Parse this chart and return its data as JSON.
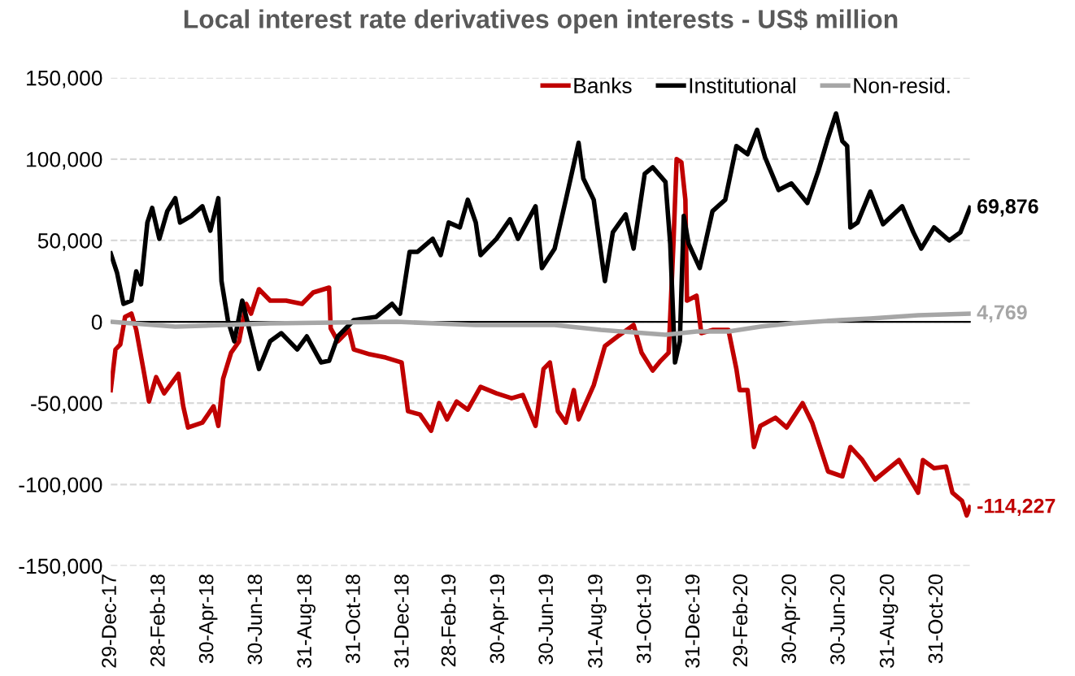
{
  "chart_data": {
    "type": "line",
    "title": "Local interest rate derivatives open interests - US$ million",
    "xlim": [
      "2017-12-29",
      "2020-12-12"
    ],
    "xticks": [
      {
        "value": "2017-12-29",
        "label": "29-Dec-17"
      },
      {
        "value": "2018-02-28",
        "label": "28-Feb-18"
      },
      {
        "value": "2018-04-30",
        "label": "30-Apr-18"
      },
      {
        "value": "2018-06-30",
        "label": "30-Jun-18"
      },
      {
        "value": "2018-08-31",
        "label": "31-Aug-18"
      },
      {
        "value": "2018-10-31",
        "label": "31-Oct-18"
      },
      {
        "value": "2018-12-31",
        "label": "31-Dec-18"
      },
      {
        "value": "2019-02-28",
        "label": "28-Feb-19"
      },
      {
        "value": "2019-04-30",
        "label": "30-Apr-19"
      },
      {
        "value": "2019-06-30",
        "label": "30-Jun-19"
      },
      {
        "value": "2019-08-31",
        "label": "31-Aug-19"
      },
      {
        "value": "2019-10-31",
        "label": "31-Oct-19"
      },
      {
        "value": "2019-12-31",
        "label": "31-Dec-19"
      },
      {
        "value": "2020-02-29",
        "label": "29-Feb-20"
      },
      {
        "value": "2020-04-30",
        "label": "30-Apr-20"
      },
      {
        "value": "2020-06-30",
        "label": "30-Jun-20"
      },
      {
        "value": "2020-08-31",
        "label": "31-Aug-20"
      },
      {
        "value": "2020-10-31",
        "label": "31-Oct-20"
      }
    ],
    "ylim": [
      -150000,
      150000
    ],
    "yticks": [
      {
        "value": -150000,
        "label": "-150,000"
      },
      {
        "value": -100000,
        "label": "-100,000"
      },
      {
        "value": -50000,
        "label": "-50,000"
      },
      0,
      {
        "value": 50000,
        "label": "50,000"
      },
      {
        "value": 100000,
        "label": "100,000"
      },
      {
        "value": 150000,
        "label": "150,000"
      }
    ],
    "grid": "y",
    "legend": "top right",
    "marker": "none",
    "line_style": "solid",
    "ref_lines": [
      {
        "axis": "y",
        "value": 0,
        "color": "#000000"
      }
    ],
    "annotations": [
      {
        "text": "-114,227",
        "x": "2020-12-11",
        "y": -114227
      },
      {
        "text": "69,876",
        "x": "2020-12-11",
        "y": 69876
      },
      {
        "text": "4,769",
        "x": "2020-12-11",
        "y": 4769
      }
    ],
    "series": [
      {
        "name": "Banks",
        "color": "#c00000",
        "x": [
          "2017-12-29",
          "2018-01-04",
          "2018-01-10",
          "2018-01-16",
          "2018-01-24",
          "2018-01-30",
          "2018-02-09",
          "2018-02-15",
          "2018-02-24",
          "2018-03-06",
          "2018-03-24",
          "2018-03-30",
          "2018-04-05",
          "2018-04-23",
          "2018-05-07",
          "2018-05-13",
          "2018-05-19",
          "2018-05-29",
          "2018-06-08",
          "2018-06-17",
          "2018-06-23",
          "2018-07-03",
          "2018-07-17",
          "2018-08-06",
          "2018-08-26",
          "2018-09-09",
          "2018-09-29",
          "2018-10-01",
          "2018-10-10",
          "2018-10-24",
          "2018-10-30",
          "2018-11-19",
          "2018-12-09",
          "2018-12-29",
          "2019-01-06",
          "2019-01-21",
          "2019-02-04",
          "2019-02-14",
          "2019-02-24",
          "2019-03-08",
          "2019-03-22",
          "2019-04-07",
          "2019-04-27",
          "2019-05-16",
          "2019-05-30",
          "2019-06-15",
          "2019-06-25",
          "2019-07-03",
          "2019-07-13",
          "2019-07-23",
          "2019-08-02",
          "2019-08-08",
          "2019-08-27",
          "2019-09-10",
          "2019-09-26",
          "2019-10-16",
          "2019-10-26",
          "2019-11-09",
          "2019-11-19",
          "2019-11-29",
          "2019-12-05",
          "2019-12-09",
          "2019-12-15",
          "2019-12-20",
          "2019-12-22",
          "2020-01-03",
          "2020-01-09",
          "2020-01-23",
          "2020-02-12",
          "2020-02-22",
          "2020-02-26",
          "2020-03-07",
          "2020-03-15",
          "2020-03-23",
          "2020-04-11",
          "2020-04-25",
          "2020-05-15",
          "2020-05-27",
          "2020-06-16",
          "2020-07-04",
          "2020-07-14",
          "2020-07-29",
          "2020-08-14",
          "2020-09-03",
          "2020-09-13",
          "2020-10-01",
          "2020-10-07",
          "2020-10-13",
          "2020-10-27",
          "2020-11-11",
          "2020-11-19",
          "2020-12-01",
          "2020-12-07",
          "2020-12-11"
        ],
        "values": [
          -42000,
          -17000,
          -14000,
          3000,
          5000,
          -5000,
          -32000,
          -49000,
          -34000,
          -44000,
          -32000,
          -52000,
          -65000,
          -62000,
          -52000,
          -64000,
          -35000,
          -19000,
          -12000,
          11000,
          5000,
          20000,
          13000,
          13000,
          11000,
          18000,
          21000,
          -4000,
          -12000,
          -5000,
          -17000,
          -20000,
          -22000,
          -25000,
          -55000,
          -57000,
          -67000,
          -50000,
          -60000,
          -49000,
          -54000,
          -40000,
          -44000,
          -47000,
          -45000,
          -64000,
          -29000,
          -25000,
          -55000,
          -62000,
          -42000,
          -60000,
          -39000,
          -15000,
          -9000,
          -2000,
          -19000,
          -30000,
          -24000,
          -19000,
          48000,
          100000,
          98000,
          75000,
          13000,
          16000,
          -7000,
          -5000,
          -5000,
          -29000,
          -42000,
          -42000,
          -77000,
          -64000,
          -59000,
          -65000,
          -50000,
          -62000,
          -92000,
          -95000,
          -77000,
          -85000,
          -97000,
          -89000,
          -85000,
          -100000,
          -105000,
          -85000,
          -90000,
          -89000,
          -105000,
          -110000,
          -119000,
          -114000
        ]
      },
      {
        "name": "Institutional",
        "color": "#000000",
        "x": [
          "2017-12-29",
          "2018-01-06",
          "2018-01-14",
          "2018-01-24",
          "2018-01-30",
          "2018-02-05",
          "2018-02-13",
          "2018-02-19",
          "2018-02-28",
          "2018-03-10",
          "2018-03-20",
          "2018-03-26",
          "2018-04-09",
          "2018-04-23",
          "2018-05-03",
          "2018-05-13",
          "2018-05-17",
          "2018-05-25",
          "2018-06-02",
          "2018-06-12",
          "2018-06-21",
          "2018-07-03",
          "2018-07-17",
          "2018-07-31",
          "2018-08-20",
          "2018-09-01",
          "2018-09-19",
          "2018-09-29",
          "2018-10-10",
          "2018-10-30",
          "2018-11-27",
          "2018-12-17",
          "2018-12-27",
          "2019-01-08",
          "2019-01-18",
          "2019-02-06",
          "2019-02-16",
          "2019-02-26",
          "2019-03-12",
          "2019-03-22",
          "2019-04-01",
          "2019-04-07",
          "2019-04-27",
          "2019-05-14",
          "2019-05-24",
          "2019-06-15",
          "2019-06-23",
          "2019-07-09",
          "2019-07-23",
          "2019-08-08",
          "2019-08-14",
          "2019-08-27",
          "2019-09-10",
          "2019-09-20",
          "2019-10-06",
          "2019-10-16",
          "2019-10-30",
          "2019-11-09",
          "2019-11-25",
          "2019-12-01",
          "2019-12-07",
          "2019-12-13",
          "2019-12-18",
          "2019-12-24",
          "2020-01-07",
          "2020-01-23",
          "2020-02-08",
          "2020-02-22",
          "2020-03-07",
          "2020-03-19",
          "2020-03-29",
          "2020-04-15",
          "2020-05-01",
          "2020-05-21",
          "2020-06-04",
          "2020-06-16",
          "2020-06-26",
          "2020-07-04",
          "2020-07-10",
          "2020-07-14",
          "2020-07-23",
          "2020-08-08",
          "2020-08-24",
          "2020-09-17",
          "2020-10-01",
          "2020-10-11",
          "2020-10-27",
          "2020-11-15",
          "2020-11-29",
          "2020-12-11"
        ],
        "values": [
          42000,
          30000,
          11000,
          13000,
          31000,
          23000,
          61000,
          70000,
          51000,
          68000,
          76000,
          61000,
          65000,
          71000,
          56000,
          76000,
          25000,
          1000,
          -12000,
          13000,
          -5000,
          -29000,
          -12000,
          -7000,
          -17000,
          -9000,
          -25000,
          -24000,
          -9000,
          1000,
          3000,
          11000,
          5000,
          43000,
          43000,
          51000,
          41000,
          61000,
          58000,
          75000,
          61000,
          41000,
          51000,
          63000,
          51000,
          71000,
          33000,
          45000,
          75000,
          110000,
          88000,
          75000,
          25000,
          55000,
          66000,
          45000,
          91000,
          95000,
          86000,
          48000,
          -25000,
          -12000,
          65000,
          48000,
          33000,
          68000,
          75000,
          108000,
          103000,
          118000,
          101000,
          81000,
          85000,
          73000,
          93000,
          113000,
          128000,
          111000,
          108000,
          58000,
          61000,
          80000,
          60000,
          71000,
          55000,
          45000,
          58000,
          50000,
          55000,
          70000
        ]
      },
      {
        "name": "Non-resid.",
        "color": "#a6a6a6",
        "x": [
          "2017-12-29",
          "2018-03-20",
          "2018-05-19",
          "2018-07-17",
          "2018-12-23",
          "2019-04-01",
          "2019-07-09",
          "2019-09-05",
          "2019-11-25",
          "2020-01-03",
          "2020-02-12",
          "2020-03-23",
          "2020-05-01",
          "2020-06-30",
          "2020-08-08",
          "2020-10-07",
          "2020-12-11"
        ],
        "values": [
          0,
          -3000,
          -2000,
          -1000,
          0,
          -2000,
          -2000,
          -5000,
          -8000,
          -6000,
          -6000,
          -3000,
          -1000,
          1000,
          2000,
          4000,
          5000
        ]
      }
    ]
  }
}
